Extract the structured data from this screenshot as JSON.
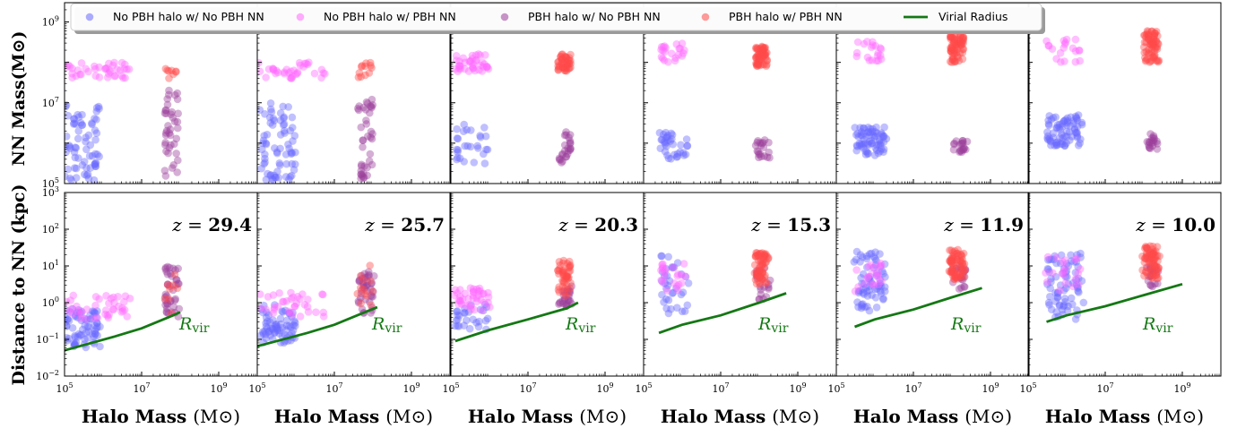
{
  "chart_data": {
    "type": "scatter",
    "legend": {
      "placement": "top",
      "entries": [
        {
          "key": "blue",
          "label": "No PBH halo w/ No PBH NN",
          "color": "#6a6aff",
          "marker": "circle"
        },
        {
          "key": "magenta",
          "label": "No PBH halo w/ PBH NN",
          "color": "#ff6aff",
          "marker": "circle"
        },
        {
          "key": "purple",
          "label": "PBH halo w/ No PBH NN",
          "color": "#9a3f9a",
          "marker": "circle"
        },
        {
          "key": "red",
          "label": "PBH halo w/ PBH NN",
          "color": "#ff4a4a",
          "marker": "circle"
        },
        {
          "key": "virial",
          "label": "Virial Radius",
          "color": "#147814",
          "marker": "line"
        }
      ]
    },
    "xlabel_prefix": "Halo Mass",
    "xlabel_unit": "(M⊙)",
    "top_ylabel": "NN Mass(M⊙)",
    "bottom_ylabel": "Distance to NN (kpc)",
    "rvir_label": "R",
    "rvir_sub": "vir",
    "z_prefix": "z =",
    "x_scale": "log",
    "xlim": [
      100000.0,
      10000000000.0
    ],
    "top_ylim": [
      100000.0,
      3000000000.0
    ],
    "bottom_ylim": [
      0.01,
      1000.0
    ],
    "x_ticks": [
      {
        "value": 100000.0,
        "base": "10",
        "exp": "5"
      },
      {
        "value": 10000000.0,
        "base": "10",
        "exp": "7"
      },
      {
        "value": 1000000000.0,
        "base": "10",
        "exp": "9"
      }
    ],
    "top_y_ticks": [
      {
        "value": 100000.0,
        "base": "10",
        "exp": "5"
      },
      {
        "value": 10000000.0,
        "base": "10",
        "exp": "7"
      },
      {
        "value": 1000000000.0,
        "base": "10",
        "exp": "9"
      }
    ],
    "bottom_y_ticks": [
      {
        "value": 0.01,
        "base": "10",
        "exp": "−2"
      },
      {
        "value": 0.1,
        "base": "10",
        "exp": "−1"
      },
      {
        "value": 1.0,
        "base": "10",
        "exp": "0"
      },
      {
        "value": 10.0,
        "base": "10",
        "exp": "1"
      },
      {
        "value": 100.0,
        "base": "10",
        "exp": "2"
      },
      {
        "value": 1000.0,
        "base": "10",
        "exp": "3"
      }
    ],
    "panels": [
      {
        "redshift": "29.4",
        "clusters": {
          "blue": {
            "n": 70,
            "x": [
              100000.0,
              800000.0
            ],
            "top": [
              120000.0,
              10000000.0
            ],
            "dist": [
              0.06,
              0.7
            ]
          },
          "magenta": {
            "n": 40,
            "x": [
              100000.0,
              5000000.0
            ],
            "top": [
              40000000.0,
              100000000.0
            ],
            "dist": [
              0.35,
              1.6
            ]
          },
          "purple": {
            "n": 40,
            "x": [
              40000000.0,
              90000000.0
            ],
            "top": [
              120000.0,
              25000000.0
            ],
            "dist": [
              0.4,
              10
            ]
          },
          "red": {
            "n": 8,
            "x": [
              40000000.0,
              80000000.0
            ],
            "top": [
              40000000.0,
              80000000.0
            ],
            "dist": [
              0.5,
              7
            ]
          }
        },
        "virial": {
          "x": [
            100000.0,
            2000000.0,
            10000000.0,
            50000000.0,
            100000000.0
          ],
          "y": [
            0.05,
            0.12,
            0.2,
            0.4,
            0.55
          ]
        }
      },
      {
        "redshift": "25.7",
        "clusters": {
          "blue": {
            "n": 70,
            "x": [
              100000.0,
              1000000.0
            ],
            "top": [
              120000.0,
              10000000.0
            ],
            "dist": [
              0.08,
              0.9
            ]
          },
          "magenta": {
            "n": 35,
            "x": [
              100000.0,
              6000000.0
            ],
            "top": [
              40000000.0,
              100000000.0
            ],
            "dist": [
              0.4,
              2
            ]
          },
          "purple": {
            "n": 40,
            "x": [
              40000000.0,
              100000000.0
            ],
            "top": [
              120000.0,
              15000000.0
            ],
            "dist": [
              0.5,
              8
            ]
          },
          "red": {
            "n": 12,
            "x": [
              40000000.0,
              100000000.0
            ],
            "top": [
              40000000.0,
              100000000.0
            ],
            "dist": [
              0.8,
              12
            ]
          }
        },
        "virial": {
          "x": [
            100000.0,
            2000000.0,
            10000000.0,
            50000000.0,
            130000000.0
          ],
          "y": [
            0.065,
            0.15,
            0.25,
            0.5,
            0.75
          ]
        }
      },
      {
        "redshift": "20.3",
        "clusters": {
          "blue": {
            "n": 28,
            "x": [
              130000.0,
              1000000.0
            ],
            "top": [
              300000.0,
              3000000.0
            ],
            "dist": [
              0.18,
              0.9
            ]
          },
          "magenta": {
            "n": 40,
            "x": [
              130000.0,
              1000000.0
            ],
            "top": [
              60000000.0,
              160000000.0
            ],
            "dist": [
              0.6,
              2.5
            ]
          },
          "purple": {
            "n": 25,
            "x": [
              60000000.0,
              130000000.0
            ],
            "top": [
              300000.0,
              2000000.0
            ],
            "dist": [
              0.8,
              3
            ]
          },
          "red": {
            "n": 45,
            "x": [
              60000000.0,
              130000000.0
            ],
            "top": [
              60000000.0,
              160000000.0
            ],
            "dist": [
              1.5,
              15
            ]
          }
        },
        "virial": {
          "x": [
            130000.0,
            1000000.0,
            10000000.0,
            100000000.0,
            200000000.0
          ],
          "y": [
            0.09,
            0.18,
            0.35,
            0.7,
            1.0
          ]
        }
      },
      {
        "redshift": "15.3",
        "clusters": {
          "blue": {
            "n": 35,
            "x": [
              250000.0,
              1500000.0
            ],
            "top": [
              400000.0,
              2000000.0
            ],
            "dist": [
              0.5,
              20
            ]
          },
          "magenta": {
            "n": 22,
            "x": [
              250000.0,
              1500000.0
            ],
            "top": [
              100000000.0,
              300000000.0
            ],
            "dist": [
              2,
              15
            ]
          },
          "purple": {
            "n": 20,
            "x": [
              80000000.0,
              200000000.0
            ],
            "top": [
              400000.0,
              1200000.0
            ],
            "dist": [
              1.2,
              10
            ]
          },
          "red": {
            "n": 60,
            "x": [
              80000000.0,
              160000000.0
            ],
            "top": [
              80000000.0,
              250000000.0
            ],
            "dist": [
              3,
              25
            ]
          }
        },
        "virial": {
          "x": [
            250000.0,
            1000000.0,
            10000000.0,
            100000000.0,
            500000000.0
          ],
          "y": [
            0.15,
            0.25,
            0.45,
            1.0,
            1.8
          ]
        }
      },
      {
        "redshift": "11.9",
        "clusters": {
          "blue": {
            "n": 70,
            "x": [
              300000.0,
              2000000.0
            ],
            "top": [
              500000.0,
              2500000.0
            ],
            "dist": [
              0.6,
              25
            ]
          },
          "magenta": {
            "n": 20,
            "x": [
              300000.0,
              2000000.0
            ],
            "top": [
              100000000.0,
              400000000.0
            ],
            "dist": [
              2,
              12
            ]
          },
          "purple": {
            "n": 20,
            "x": [
              100000000.0,
              250000000.0
            ],
            "top": [
              600000.0,
              1200000.0
            ],
            "dist": [
              2,
              10
            ]
          },
          "red": {
            "n": 70,
            "x": [
              90000000.0,
              200000000.0
            ],
            "top": [
              100000000.0,
              500000000.0
            ],
            "dist": [
              4,
              28
            ]
          }
        },
        "virial": {
          "x": [
            300000.0,
            1000000.0,
            10000000.0,
            100000000.0,
            600000000.0
          ],
          "y": [
            0.22,
            0.35,
            0.65,
            1.4,
            2.5
          ]
        }
      },
      {
        "redshift": "10.0",
        "clusters": {
          "blue": {
            "n": 75,
            "x": [
              300000.0,
              2500000.0
            ],
            "top": [
              800000.0,
              5000000.0
            ],
            "dist": [
              0.35,
              22
            ]
          },
          "magenta": {
            "n": 20,
            "x": [
              300000.0,
              2500000.0
            ],
            "top": [
              100000000.0,
              400000000.0
            ],
            "dist": [
              2,
              20
            ]
          },
          "purple": {
            "n": 20,
            "x": [
              120000000.0,
              250000000.0
            ],
            "top": [
              700000.0,
              2000000.0
            ],
            "dist": [
              2,
              10
            ]
          },
          "red": {
            "n": 70,
            "x": [
              100000000.0,
              250000000.0
            ],
            "top": [
              100000000.0,
              600000000.0
            ],
            "dist": [
              4,
              35
            ]
          }
        },
        "virial": {
          "x": [
            300000.0,
            1000000.0,
            10000000.0,
            100000000.0,
            1000000000.0
          ],
          "y": [
            0.3,
            0.45,
            0.8,
            1.6,
            3.2
          ]
        }
      }
    ]
  }
}
